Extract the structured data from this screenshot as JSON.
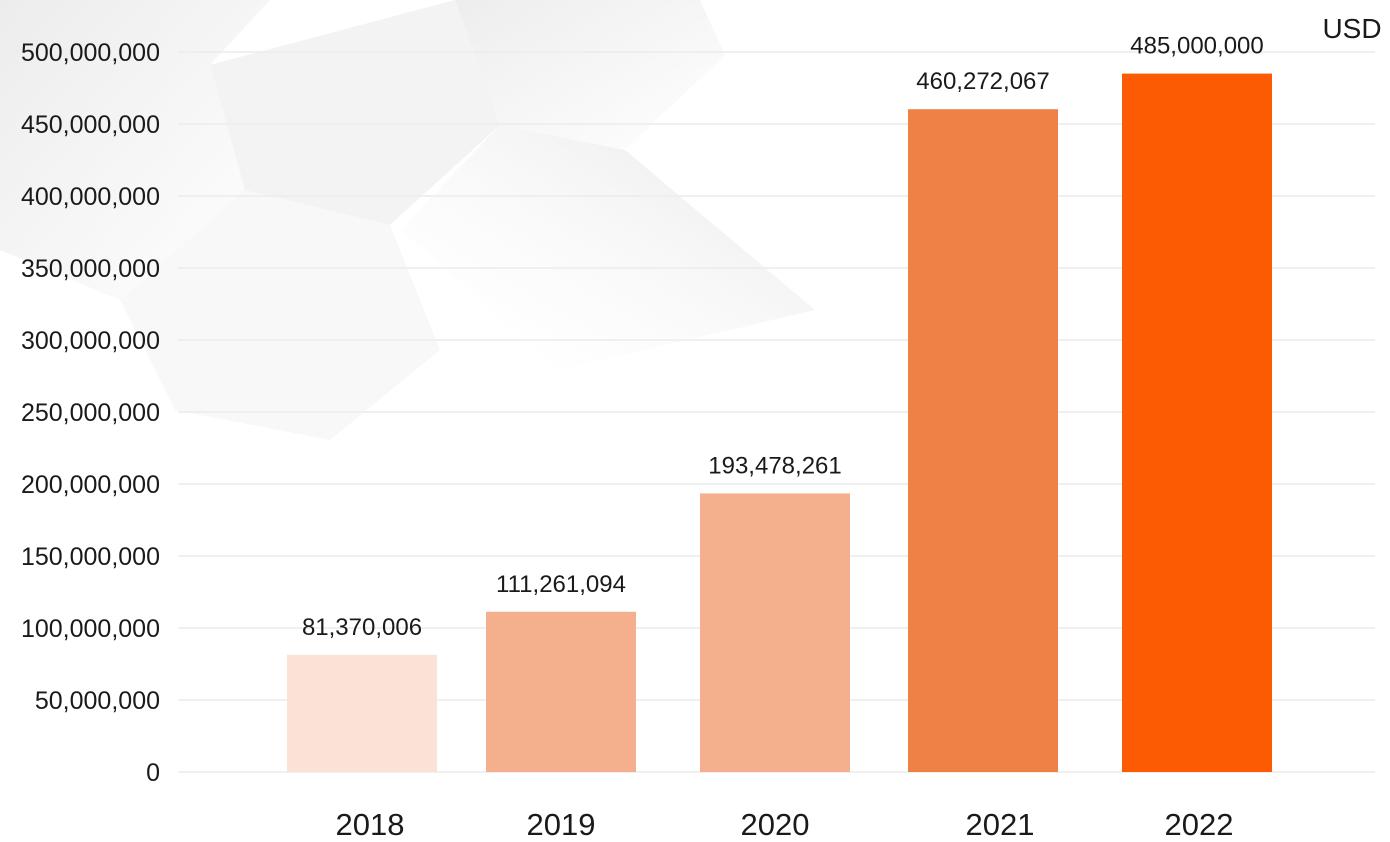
{
  "chart_data": {
    "type": "bar",
    "title": "",
    "xlabel": "",
    "ylabel": "",
    "unit": "USD",
    "categories": [
      "2018",
      "2019",
      "2020",
      "2021",
      "2022"
    ],
    "values": [
      81370006,
      111261094,
      193478261,
      460272067,
      485000000
    ],
    "value_labels": [
      "81,370,006",
      "111,261,094",
      "193,478,261",
      "460,272,067",
      "485,000,000"
    ],
    "ylim": [
      0,
      500000000
    ],
    "yticks": [
      0,
      50000000,
      100000000,
      150000000,
      200000000,
      250000000,
      300000000,
      350000000,
      400000000,
      450000000,
      500000000
    ],
    "ytick_labels": [
      "0",
      "50,000,000",
      "100,000,000",
      "150,000,000",
      "200,000,000",
      "250,000,000",
      "300,000,000",
      "350,000,000",
      "400,000,000",
      "450,000,000",
      "500,000,000"
    ],
    "grid": true,
    "legend": "none",
    "colors": [
      "#fae3d6",
      "#f4b08c",
      "#f4b08c",
      "#f08146",
      "#fc5a03"
    ]
  }
}
